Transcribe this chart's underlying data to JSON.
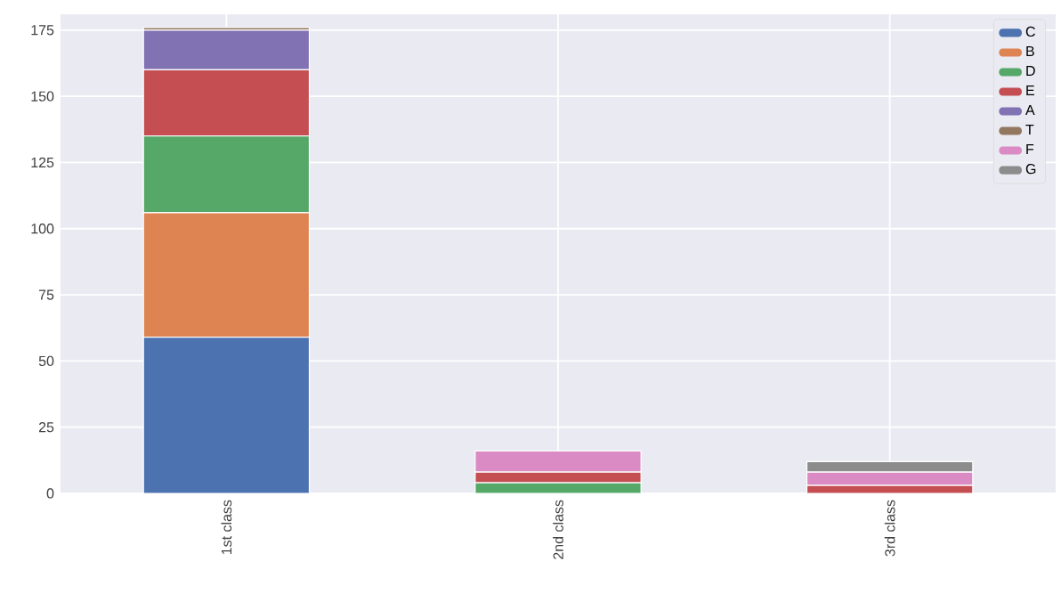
{
  "chart_data": {
    "type": "bar",
    "stacked": true,
    "categories": [
      "1st class",
      "2nd class",
      "3rd class"
    ],
    "series": [
      {
        "name": "C",
        "color": "#4c72b0",
        "values": [
          59,
          0,
          0
        ]
      },
      {
        "name": "B",
        "color": "#dd8452",
        "values": [
          47,
          0,
          0
        ]
      },
      {
        "name": "D",
        "color": "#55a868",
        "values": [
          29,
          4,
          0
        ]
      },
      {
        "name": "E",
        "color": "#c44e52",
        "values": [
          25,
          4,
          3
        ]
      },
      {
        "name": "A",
        "color": "#8172b3",
        "values": [
          15,
          0,
          0
        ]
      },
      {
        "name": "T",
        "color": "#937860",
        "values": [
          1,
          0,
          0
        ]
      },
      {
        "name": "F",
        "color": "#da8bc3",
        "values": [
          0,
          8,
          5
        ]
      },
      {
        "name": "G",
        "color": "#8c8c8c",
        "values": [
          0,
          0,
          4
        ]
      }
    ],
    "ylim": [
      0,
      181
    ],
    "yticks": [
      0,
      25,
      50,
      75,
      100,
      125,
      150,
      175
    ],
    "grid": true,
    "legend": "top right"
  }
}
